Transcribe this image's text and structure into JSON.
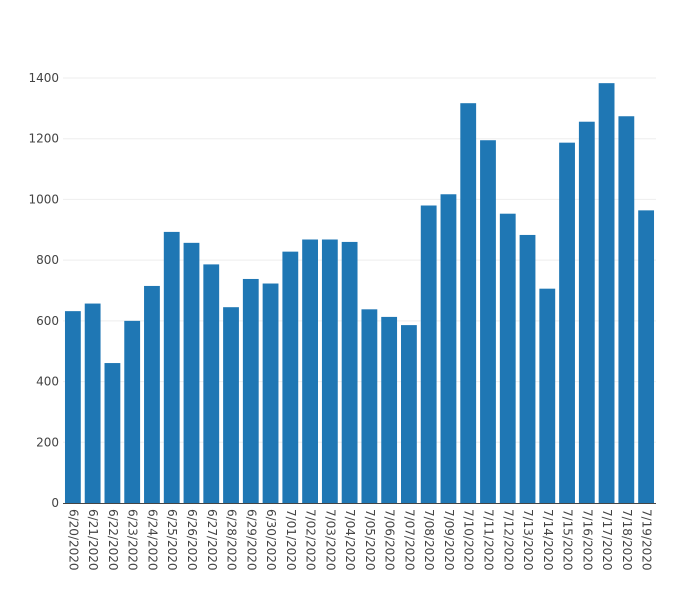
{
  "chart_data": {
    "type": "bar",
    "title": "",
    "xlabel": "",
    "ylabel": "",
    "ylim": [
      0,
      1400
    ],
    "yticks": [
      0,
      200,
      400,
      600,
      800,
      1000,
      1200,
      1400
    ],
    "grid": true,
    "bar_color": "#1f77b4",
    "grid_color": "#eeeeee",
    "axis_color": "#444444",
    "categories": [
      "6/20/2020",
      "6/21/2020",
      "6/22/2020",
      "6/23/2020",
      "6/24/2020",
      "6/25/2020",
      "6/26/2020",
      "6/27/2020",
      "6/28/2020",
      "6/29/2020",
      "6/30/2020",
      "7/01/2020",
      "7/02/2020",
      "7/03/2020",
      "7/04/2020",
      "7/05/2020",
      "7/06/2020",
      "7/07/2020",
      "7/08/2020",
      "7/09/2020",
      "7/10/2020",
      "7/11/2020",
      "7/12/2020",
      "7/13/2020",
      "7/14/2020",
      "7/15/2020",
      "7/16/2020",
      "7/17/2020",
      "7/18/2020",
      "7/19/2020"
    ],
    "values": [
      632,
      657,
      461,
      600,
      715,
      893,
      857,
      786,
      645,
      738,
      723,
      828,
      868,
      868,
      860,
      638,
      613,
      586,
      980,
      1017,
      1317,
      1195,
      953,
      883,
      706,
      1187,
      1256,
      1383,
      1274,
      964
    ]
  }
}
